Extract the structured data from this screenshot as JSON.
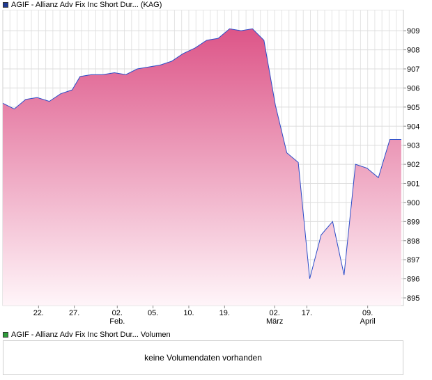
{
  "chart_data": {
    "type": "area",
    "title": "AGIF - Allianz Adv Fix Inc Short Dur... (KAG)",
    "legend_color": "#1f3a93",
    "line_color": "#2b4cc8",
    "fill_top_color": "#dd5588",
    "fill_bottom_color": "#fff5f9",
    "ylim": [
      894.6,
      910.1
    ],
    "yticks": [
      895,
      896,
      897,
      898,
      899,
      900,
      901,
      902,
      903,
      904,
      905,
      906,
      907,
      908,
      909
    ],
    "ytick_labels": [
      "895",
      "896",
      "897",
      "898",
      "899",
      "900",
      "901",
      "902",
      "903",
      "904",
      "905",
      "906",
      "907",
      "908",
      "909"
    ],
    "xlim": [
      0,
      56
    ],
    "x_ticks": [
      {
        "x": 5,
        "label": "22."
      },
      {
        "x": 10,
        "label": "27."
      },
      {
        "x": 16,
        "label": "02."
      },
      {
        "x": 21,
        "label": "05."
      },
      {
        "x": 26,
        "label": "10."
      },
      {
        "x": 31,
        "label": "19."
      },
      {
        "x": 38,
        "label": "02."
      },
      {
        "x": 42.5,
        "label": "17."
      },
      {
        "x": 51,
        "label": "09."
      }
    ],
    "month_labels": [
      {
        "x": 16,
        "label": "Feb."
      },
      {
        "x": 38,
        "label": "März"
      },
      {
        "x": 51,
        "label": "April"
      }
    ],
    "series": [
      {
        "x": [
          0,
          1.6,
          3.2,
          4.8,
          6.5,
          8.1,
          9.7,
          10.8,
          12.4,
          14,
          15.6,
          17.2,
          18.8,
          20.4,
          22,
          23.6,
          25.2,
          26.9,
          28.5,
          30.1,
          31.7,
          33.3,
          34.9,
          36.5,
          38.1,
          39.7,
          41.3,
          42.9,
          44.5,
          46.1,
          47.7,
          49.3,
          50.9,
          52.5,
          54.1,
          55.7
        ],
        "y": [
          905.2,
          904.9,
          905.4,
          905.5,
          905.3,
          905.7,
          905.9,
          906.6,
          906.7,
          906.7,
          906.8,
          906.7,
          907.0,
          907.1,
          907.2,
          907.4,
          907.8,
          908.1,
          908.5,
          908.6,
          909.1,
          909.0,
          909.1,
          908.5,
          905.1,
          902.6,
          902.1,
          896.0,
          898.3,
          899.0,
          896.2,
          902.0,
          901.8,
          901.3,
          903.3,
          903.3
        ]
      }
    ],
    "grid": true,
    "volume_title": "AGIF - Allianz Adv Fix Inc Short Dur... Volumen",
    "volume_legend_color": "#2e9c3a",
    "volume_message": "keine Volumendaten vorhanden"
  }
}
